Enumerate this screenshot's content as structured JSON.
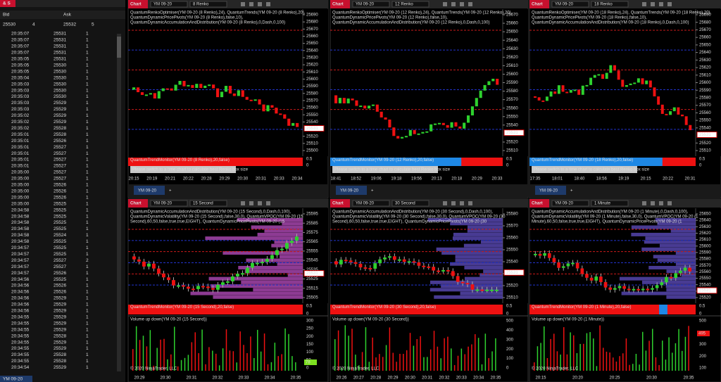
{
  "time_sales": {
    "title": "& S",
    "headers": [
      "Bid",
      "Ask"
    ],
    "quote": [
      25530,
      4,
      25532,
      5
    ],
    "instrument": "YM 09-20",
    "rows": [
      [
        "20:35:07",
        25531,
        1
      ],
      [
        "20:35:07",
        25531,
        1
      ],
      [
        "20:35:07",
        25531,
        1
      ],
      [
        "20:35:07",
        25531,
        1
      ],
      [
        "20:35:05",
        25531,
        1
      ],
      [
        "20:35:05",
        25530,
        1
      ],
      [
        "20:35:05",
        25530,
        1
      ],
      [
        "20:35:04",
        25530,
        1
      ],
      [
        "20:35:03",
        25530,
        1
      ],
      [
        "20:35:03",
        25530,
        1
      ],
      [
        "20:35:03",
        25530,
        1
      ],
      [
        "20:35:03",
        25529,
        1
      ],
      [
        "20:35:03",
        25529,
        1
      ],
      [
        "20:35:02",
        25529,
        1
      ],
      [
        "20:35:02",
        25529,
        1
      ],
      [
        "20:35:02",
        25528,
        1
      ],
      [
        "20:35:01",
        25528,
        1
      ],
      [
        "20:35:01",
        25526,
        1
      ],
      [
        "20:35:01",
        25527,
        1
      ],
      [
        "20:35:01",
        25527,
        1
      ],
      [
        "20:35:01",
        25527,
        1
      ],
      [
        "20:35:01",
        25527,
        1
      ],
      [
        "20:35:00",
        25527,
        1
      ],
      [
        "20:35:00",
        25527,
        1
      ],
      [
        "20:35:00",
        25526,
        1
      ],
      [
        "20:35:00",
        25526,
        1
      ],
      [
        "20:35:00",
        25526,
        1
      ],
      [
        "20:35:00",
        25525,
        1
      ],
      [
        "20:34:58",
        25525,
        1
      ],
      [
        "20:34:58",
        25525,
        1
      ],
      [
        "20:34:58",
        25525,
        1
      ],
      [
        "20:34:58",
        25525,
        1
      ],
      [
        "20:34:58",
        25524,
        1
      ],
      [
        "20:34:58",
        25525,
        1
      ],
      [
        "20:34:57",
        25525,
        1
      ],
      [
        "20:34:57",
        25525,
        1
      ],
      [
        "20:34:57",
        25527,
        2
      ],
      [
        "20:34:57",
        25527,
        1
      ],
      [
        "20:34:57",
        25526,
        1
      ],
      [
        "20:34:56",
        25525,
        1
      ],
      [
        "20:34:56",
        25526,
        1
      ],
      [
        "20:34:56",
        25526,
        1
      ],
      [
        "20:34:56",
        25529,
        1
      ],
      [
        "20:34:56",
        25529,
        1
      ],
      [
        "20:34:56",
        25529,
        1
      ],
      [
        "20:34:55",
        25529,
        1
      ],
      [
        "20:34:55",
        25529,
        1
      ],
      [
        "20:34:55",
        25529,
        1
      ],
      [
        "20:34:55",
        25528,
        1
      ],
      [
        "20:34:55",
        25529,
        1
      ],
      [
        "20:34:55",
        25529,
        1
      ],
      [
        "20:34:55",
        25528,
        1
      ],
      [
        "20:34:55",
        25528,
        1
      ],
      [
        "20:34:54",
        25529,
        1
      ]
    ]
  },
  "panels": [
    {
      "tab": "Chart",
      "instrument": "YM 09-20",
      "interval": "8 Renko",
      "indicators": [
        "QuantumRenkoOptimiser(YM 09-20 (8 Renko),24), QuantumTrends(YM 09-20 (8 Renko),20),",
        "QuantumDynamicPricePivots(YM 09-20 (8 Renko),false,10),",
        "QuantumDynamicAccumulationAndDistribution(YM 09-20 (8 Renko),0,Dash,0,100)"
      ],
      "prices": [
        25690,
        25680,
        25670,
        25660,
        25650,
        25640,
        25630,
        25620,
        25610,
        25600,
        25590,
        25580,
        25570,
        25560,
        25550,
        25540,
        25520,
        25510,
        25500
      ],
      "last": 25531,
      "times": [
        "20:15",
        "20:19",
        "20:21",
        "20:22",
        "20:28",
        "20:29",
        "20:30",
        "20:31",
        "20:33",
        "20:34"
      ],
      "monitor": "QuantumTrendMonitor(YM 09-20 (8 Renko),20,false)",
      "monitor_axis": [
        "0.5",
        "0"
      ],
      "note": "Please switch to a time chart to calculate best Renko box size",
      "window_tab": "YM 09-20"
    },
    {
      "tab": "Chart",
      "instrument": "YM 09-20",
      "interval": "12 Renko",
      "indicators": [
        "QuantumRenkoOptimiser(YM 09-20 (12 Renko),24), QuantumTrends(YM 09-20 (12 Renko),20),",
        "QuantumDynamicPricePivots(YM 09-20 (12 Renko),false,10),",
        "QuantumDynamicAccumulationAndDistribution(YM 09-20 (12 Renko),0,Dash,0,100)"
      ],
      "prices": [
        25670,
        25660,
        25650,
        25640,
        25630,
        25620,
        25610,
        25600,
        25590,
        25580,
        25570,
        25560,
        25550,
        25540,
        25520,
        25510
      ],
      "last": 25531,
      "times": [
        "18:41",
        "18:52",
        "19:06",
        "19:18",
        "19:56",
        "20:13",
        "20:18",
        "20:29",
        "20:33"
      ],
      "monitor": "QuantumTrendMonitor(YM 09-20 (12 Renko),20,false)",
      "monitor_axis": [
        "0.5",
        "0"
      ],
      "note": "Please switch to a time chart to calculate best Renko box size",
      "window_tab": "YM 09-20"
    },
    {
      "tab": "Chart",
      "instrument": "YM 09-20",
      "interval": "18 Renko",
      "indicators": [
        "QuantumRenkoOptimiser(YM 09-20 (18 Renko),24), QuantumTrends(YM 09-20 (18 Renko),20),",
        "QuantumDynamicPricePivots(YM 09-20 (18 Renko),false,10),",
        "QuantumDynamicAccumulationAndDistribution(YM 09-20 (18 Renko),0,Dash,0,100)"
      ],
      "prices": [
        25690,
        25680,
        25670,
        25660,
        25650,
        25640,
        25630,
        25620,
        25610,
        25600,
        25590,
        25580,
        25570,
        25560,
        25550,
        25540,
        25520,
        25510
      ],
      "last": 25531,
      "times": [
        "17:35",
        "18:01",
        "18:40",
        "18:56",
        "19:19",
        "20:15",
        "20:22",
        "20:31"
      ],
      "monitor": "QuantumTrendMonitor(YM 09-20 (18 Renko),20,false)",
      "monitor_axis": [
        "0.5",
        "0"
      ],
      "note": "Please switch to a time chart to calculate best Renko box size",
      "window_tab": "YM 09-20"
    },
    {
      "tab": "Chart",
      "instrument": "YM 09-20",
      "interval": "15 Second",
      "indicators": [
        "QuantumDynamicAccumulationAndDistribution(YM 09-20 (15 Second),0,Dash,0,100),",
        "QuantumDynamicVolatility(YM 09-20 (15 Second),false,30,0), QuantumVPOC(YM 09-20 (15",
        "Second),60,50,false,true,true,EIGHT), QuantumDynamicPricePivots(YM 09-20 (15"
      ],
      "prices": [
        25595,
        25585,
        25575,
        25565,
        25555,
        25545,
        25535,
        25525,
        25515,
        25505
      ],
      "last": 25531,
      "times": [
        "20:29",
        "20:30",
        "20:31",
        "20:32",
        "20:33",
        "20:34",
        "20:35"
      ],
      "monitor": "QuantumTrendMonitor(YM 09-20 (15 Second),20,false)",
      "monitor_axis": [
        "0.5",
        "0"
      ],
      "volume_label": "Volume up down(YM 09-20 (15 Second))",
      "volume_axis": [
        300,
        250,
        200,
        150,
        100,
        50,
        0
      ],
      "volume_last": 78,
      "copyright": "© 2020 NinjaTrader, LLC"
    },
    {
      "tab": "Chart",
      "instrument": "YM 09-20",
      "interval": "30 Second",
      "indicators": [
        "QuantumDynamicAccumulationAndDistribution(YM 09-20 (30 Second),0,Dash,0,100),",
        "QuantumDynamicVolatility(YM 09-20 (30 Second),false,30,0), QuantumVPOC(YM 09-20 (30",
        "Second),60,50,false,true,true,EIGHT), QuantumDynamicPricePivots(YM 09-20 (30"
      ],
      "prices": [
        25580,
        25570,
        25560,
        25550,
        25540,
        25530,
        25520,
        25510
      ],
      "last": 25531,
      "times": [
        "20:26",
        "20:27",
        "20:28",
        "20:29",
        "20:30",
        "20:31",
        "20:32",
        "20:33",
        "20:34",
        "20:35"
      ],
      "monitor": "QuantumTrendMonitor(YM 09-20 (30 Second),20,false)",
      "monitor_axis": [
        "0.5",
        "0"
      ],
      "volume_label": "Volume up down(YM 09-20 (30 Second))",
      "volume_axis": [
        500,
        400,
        300,
        200,
        100,
        0
      ],
      "copyright": "© 2020 NinjaTrader, LLC"
    },
    {
      "tab": "Chart",
      "instrument": "YM 09-20",
      "interval": "1 Minute",
      "indicators": [
        "QuantumDynamicAccumulationAndDistribution(YM 09-20 (1 Minute),0,Dash,0,100),",
        "QuantumDynamicVolatility(YM 09-20 (1 Minute),false,30,0), QuantumVPOC(YM 09-20 (1",
        "Minute),60,50,false,true,true,EIGHT), QuantumDynamicPricePivots(YM 09-20 (1"
      ],
      "prices": [
        25650,
        25640,
        25630,
        25620,
        25610,
        25600,
        25590,
        25580,
        25570,
        25560,
        25550,
        25540,
        25530,
        25520
      ],
      "last": 25531,
      "times": [
        "20:15",
        "20:20",
        "20:25",
        "20:30",
        "20:35"
      ],
      "monitor": "QuantumTrendMonitor(YM 09-20 (1 Minute),20,false)",
      "monitor_axis": [
        "0.5",
        "0"
      ],
      "volume_label": "Volume up down(YM 09-20 (1 Minute))",
      "volume_axis": [
        500,
        400,
        300,
        200,
        100
      ],
      "volume_last": 495,
      "copyright": "© 2020 NinjaTrader, LLC"
    }
  ]
}
